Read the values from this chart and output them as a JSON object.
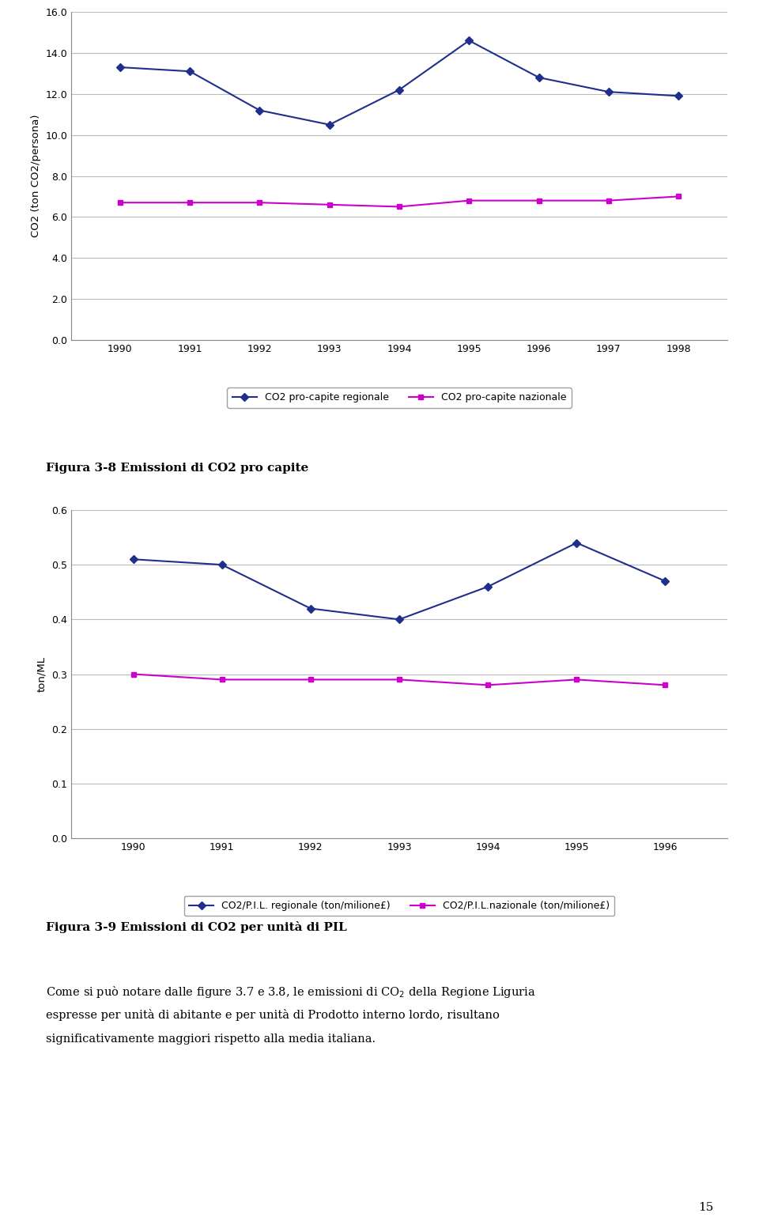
{
  "chart1": {
    "years": [
      1990,
      1991,
      1992,
      1993,
      1994,
      1995,
      1996,
      1997,
      1998
    ],
    "regional": [
      13.3,
      13.1,
      11.2,
      10.5,
      12.2,
      14.6,
      12.8,
      12.1,
      11.9
    ],
    "national": [
      6.7,
      6.7,
      6.7,
      6.6,
      6.5,
      6.8,
      6.8,
      6.8,
      7.0
    ],
    "ylabel": "CO2 (ton CO2/persona)",
    "ylim": [
      0.0,
      16.0
    ],
    "yticks": [
      0.0,
      2.0,
      4.0,
      6.0,
      8.0,
      10.0,
      12.0,
      14.0,
      16.0
    ],
    "legend1": "CO2 pro-capite regionale",
    "legend2": "CO2 pro-capite nazionale",
    "line1_color": "#1F2F8B",
    "line2_color": "#CC00CC",
    "marker1": "D",
    "marker2": "s"
  },
  "chart2": {
    "years": [
      1990,
      1991,
      1992,
      1993,
      1994,
      1995,
      1996
    ],
    "regional": [
      0.51,
      0.5,
      0.42,
      0.4,
      0.46,
      0.54,
      0.47
    ],
    "national": [
      0.3,
      0.29,
      0.29,
      0.29,
      0.28,
      0.29,
      0.28
    ],
    "ylabel": "ton/ML",
    "ylim": [
      0.0,
      0.6
    ],
    "yticks": [
      0.0,
      0.1,
      0.2,
      0.3,
      0.4,
      0.5,
      0.6
    ],
    "legend1": "CO2/P.I.L. regionale (ton/milione£)",
    "legend2": "CO2/P.I.L.nazionale (ton/milione£)",
    "line1_color": "#1F2F8B",
    "line2_color": "#CC00CC",
    "marker1": "D",
    "marker2": "s"
  },
  "fig38_caption": "Figura 3-8 Emissioni di CO2 pro capite",
  "fig39_caption": "Figura 3-9 Emissioni di CO2 per unità di PIL",
  "body_text": "Come si può notare dalle figure 3.7 e 3.8, le emissioni di CO₂ della Regione Liguria espresse per unità di abitante e per unità di Prodotto interno lordo, risultano significativamente maggiori rispetto alla media italiana.",
  "page_number": "15",
  "bg_color": "#FFFFFF",
  "grid_color": "#BBBBBB"
}
